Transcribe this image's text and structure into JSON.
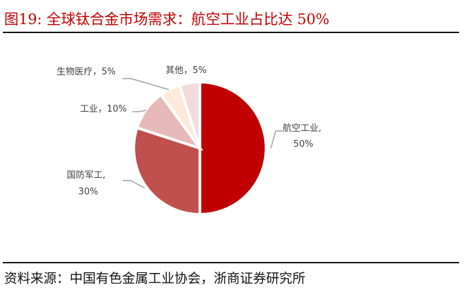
{
  "title": "图19:  全球钛合金市场需求：航空工业占比达 50%",
  "source": "资料来源：中国有色金属工业协会，浙商证券研究所",
  "chart_data": {
    "type": "pie",
    "categories": [
      "航空工业",
      "国防军工",
      "工业",
      "生物医疗",
      "其他"
    ],
    "values": [
      50,
      30,
      10,
      5,
      5
    ],
    "unit": "%",
    "labels": [
      [
        "航空工业,",
        "50%"
      ],
      [
        "国防军工,",
        "30%"
      ],
      [
        "工业，10%"
      ],
      [
        "生物医疗，5%"
      ],
      [
        "其他，5%"
      ]
    ],
    "colors": [
      "#C00000",
      "#C0504D",
      "#E6B9B8",
      "#FDE9D9",
      "#F2DCDB"
    ],
    "start": "12 o'clock",
    "direction": "clockwise",
    "legend": "none"
  }
}
